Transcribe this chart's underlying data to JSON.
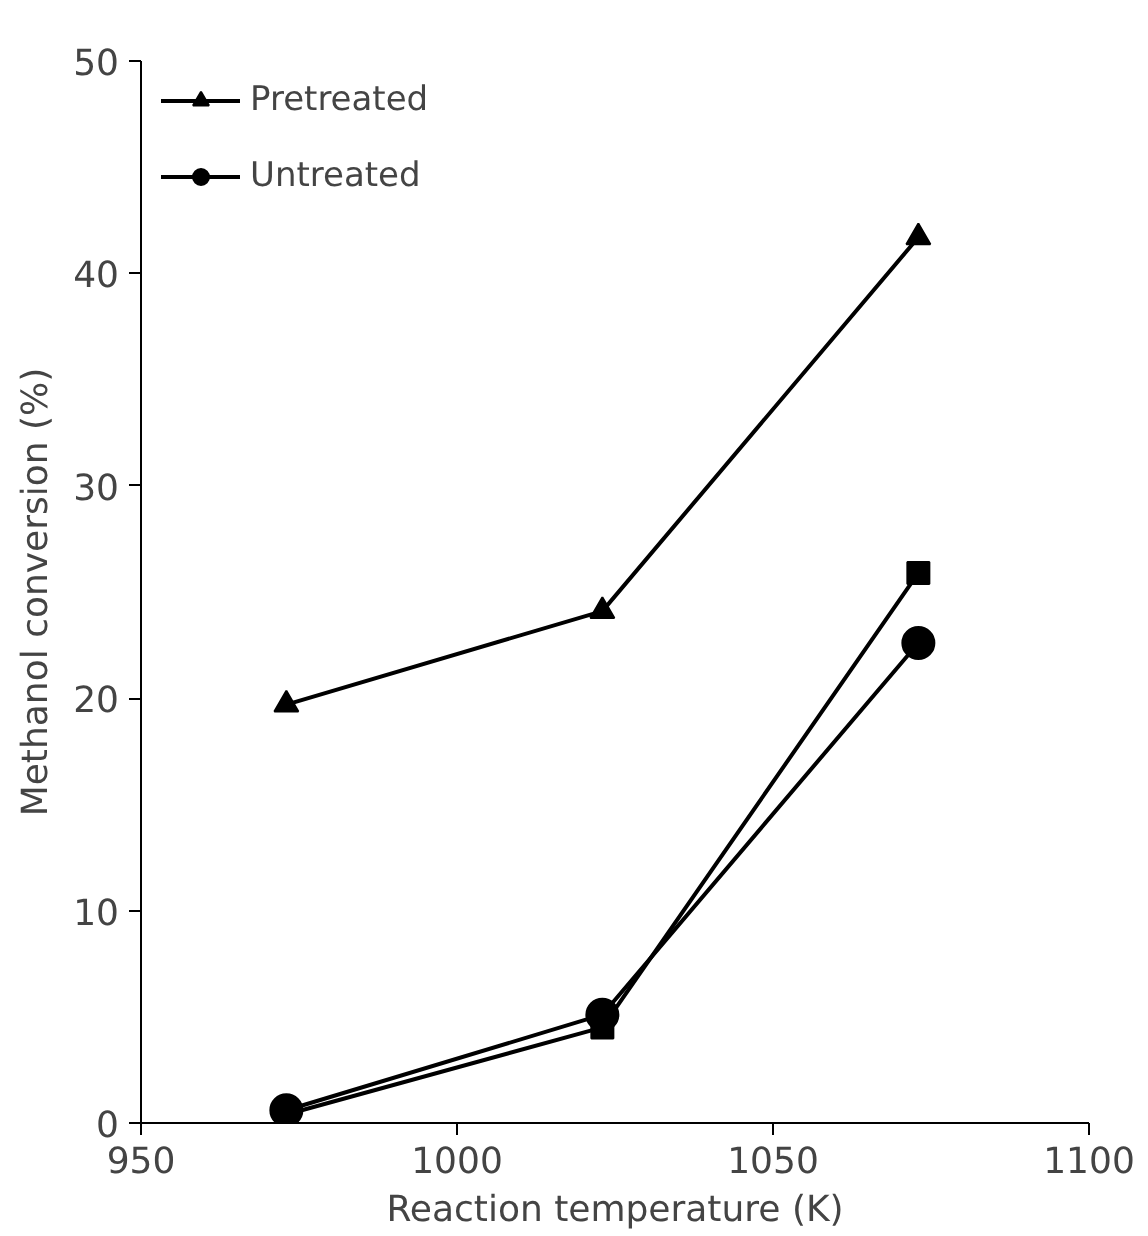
{
  "chart_data": {
    "type": "line",
    "xlabel": "Reaction temperature (K)",
    "ylabel": "Methanol conversion (%)",
    "x": [
      973,
      1023,
      1073
    ],
    "series": [
      {
        "name": "Pretreated",
        "color": "#000000",
        "marker": "triangle",
        "values": [
          19.7,
          24.1,
          41.7
        ]
      },
      {
        "color": "#000000",
        "marker": "square",
        "values": [
          0.4,
          4.5,
          25.9
        ]
      },
      {
        "name": "Untreated",
        "color": "#000000",
        "marker": "circle",
        "values": [
          0.6,
          5.1,
          22.6
        ]
      }
    ],
    "xlim": [
      950,
      1100
    ],
    "xticks": [
      950,
      1000,
      1050,
      1100
    ],
    "ylim": [
      0,
      50
    ],
    "yticks": [
      0,
      10,
      20,
      30,
      40,
      50
    ],
    "grid": false,
    "legend": "top left",
    "line_style": "solid"
  }
}
